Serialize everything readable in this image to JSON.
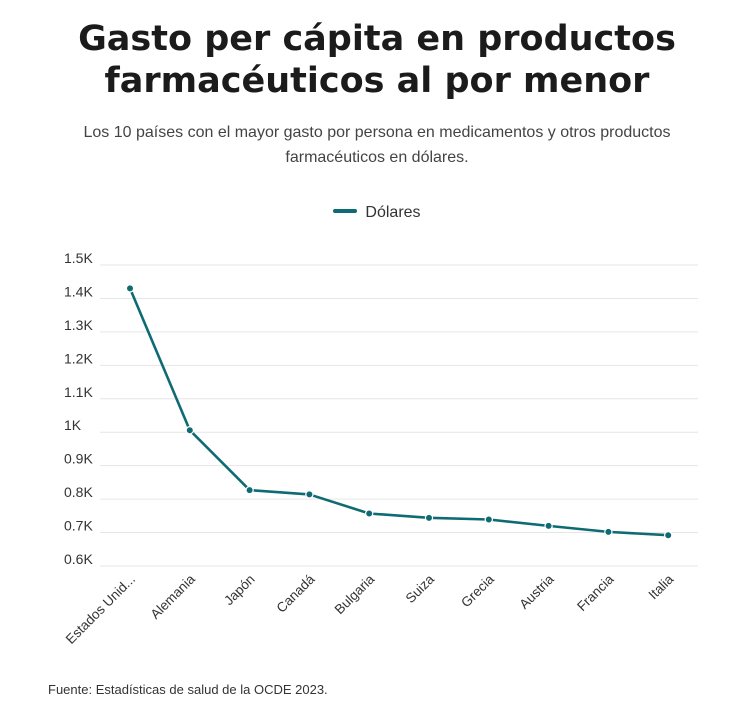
{
  "header": {
    "title_line1": "Gasto per cápita en productos",
    "title_line2": "farmacéuticos al por menor",
    "subtitle_line1": "Los 10 países con el mayor gasto por persona en medicamentos y otros productos",
    "subtitle_line2": "farmacéuticos en dólares."
  },
  "footer": {
    "source": "Fuente: Estadísticas de salud de la OCDE 2023."
  },
  "colors": {
    "series": "#0f6b73",
    "grid": "#e6e6e6"
  },
  "chart_data": {
    "type": "line",
    "title": "Gasto per cápita en productos farmacéuticos al por menor",
    "subtitle": "Los 10 países con el mayor gasto por persona en medicamentos y otros productos farmacéuticos en dólares.",
    "xlabel": "",
    "ylabel": "",
    "categories": [
      "Estados Unid...",
      "Alemania",
      "Japón",
      "Canadá",
      "Bulgaria",
      "Suiza",
      "Grecia",
      "Austria",
      "Francia",
      "Italia"
    ],
    "series": [
      {
        "name": "Dólares",
        "values": [
          1430,
          1006,
          827,
          814,
          757,
          744,
          739,
          720,
          702,
          692
        ]
      }
    ],
    "ylim": [
      600,
      1500
    ],
    "yticks": [
      600,
      700,
      800,
      900,
      1000,
      1100,
      1200,
      1300,
      1400,
      1500
    ],
    "ytick_labels": [
      "0.6K",
      "0.7K",
      "0.8K",
      "0.9K",
      "1K",
      "1.1K",
      "1.2K",
      "1.3K",
      "1.4K",
      "1.5K"
    ],
    "grid": true,
    "legend": "top-center"
  }
}
